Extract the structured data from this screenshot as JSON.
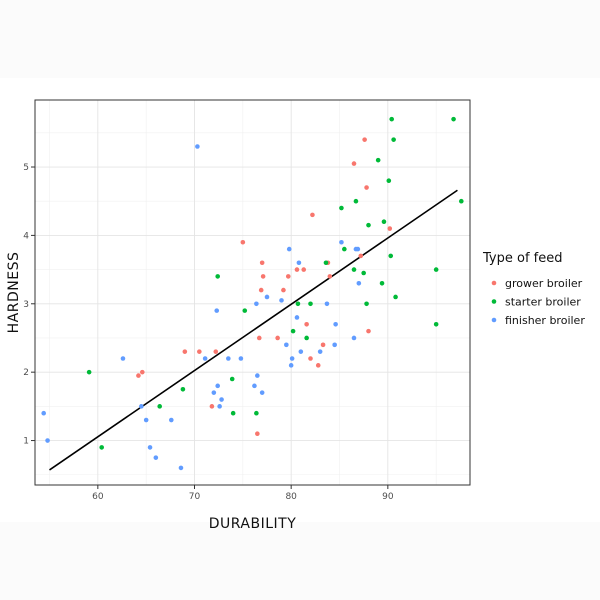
{
  "chart_data": {
    "type": "scatter",
    "title": "",
    "xlabel": "DURABILITY",
    "ylabel": "HARDNESS",
    "xlim": [
      53.5,
      98.5
    ],
    "ylim": [
      0.35,
      5.98
    ],
    "xticks": [
      60,
      70,
      80,
      90
    ],
    "yticks": [
      1,
      2,
      3,
      4,
      5
    ],
    "grid": true,
    "legend": {
      "title": "Type of feed",
      "placement": "right"
    },
    "series": [
      {
        "name": "grower broiler",
        "color": "#f8766d",
        "points": [
          [
            64.2,
            1.95
          ],
          [
            64.6,
            2.0
          ],
          [
            69.0,
            2.3
          ],
          [
            70.5,
            2.3
          ],
          [
            71.8,
            1.5
          ],
          [
            72.2,
            2.3
          ],
          [
            75.0,
            3.9
          ],
          [
            76.5,
            1.1
          ],
          [
            76.7,
            2.5
          ],
          [
            76.9,
            3.2
          ],
          [
            77.1,
            3.4
          ],
          [
            77.0,
            3.6
          ],
          [
            78.6,
            2.5
          ],
          [
            79.2,
            3.2
          ],
          [
            79.7,
            3.4
          ],
          [
            80.6,
            3.5
          ],
          [
            81.3,
            3.5
          ],
          [
            81.6,
            2.7
          ],
          [
            82.0,
            2.2
          ],
          [
            82.2,
            4.3
          ],
          [
            82.8,
            2.1
          ],
          [
            83.3,
            2.4
          ],
          [
            83.8,
            3.6
          ],
          [
            84.0,
            3.4
          ],
          [
            86.5,
            5.05
          ],
          [
            87.2,
            3.7
          ],
          [
            87.6,
            5.4
          ],
          [
            87.8,
            4.7
          ],
          [
            88.0,
            2.6
          ],
          [
            90.2,
            4.1
          ]
        ]
      },
      {
        "name": "starter broiler",
        "color": "#00ba38",
        "points": [
          [
            59.1,
            2.0
          ],
          [
            60.4,
            0.9
          ],
          [
            66.4,
            1.5
          ],
          [
            68.8,
            1.75
          ],
          [
            72.4,
            3.4
          ],
          [
            73.9,
            1.9
          ],
          [
            74.0,
            1.4
          ],
          [
            75.2,
            2.9
          ],
          [
            76.4,
            1.4
          ],
          [
            80.2,
            2.6
          ],
          [
            80.7,
            3.0
          ],
          [
            81.6,
            2.5
          ],
          [
            82.0,
            3.0
          ],
          [
            83.6,
            3.6
          ],
          [
            85.2,
            4.4
          ],
          [
            85.5,
            3.8
          ],
          [
            86.5,
            3.5
          ],
          [
            86.7,
            4.5
          ],
          [
            87.5,
            3.45
          ],
          [
            87.8,
            3.0
          ],
          [
            88.0,
            4.15
          ],
          [
            89.0,
            5.1
          ],
          [
            89.4,
            3.3
          ],
          [
            89.6,
            4.2
          ],
          [
            90.1,
            4.8
          ],
          [
            90.4,
            5.7
          ],
          [
            90.3,
            3.7
          ],
          [
            90.6,
            5.4
          ],
          [
            90.8,
            3.1
          ],
          [
            95.0,
            3.5
          ],
          [
            95.0,
            2.7
          ],
          [
            96.8,
            5.7
          ],
          [
            97.6,
            4.5
          ]
        ]
      },
      {
        "name": "finisher broiler",
        "color": "#619cff",
        "points": [
          [
            54.4,
            1.4
          ],
          [
            54.8,
            1.0
          ],
          [
            62.6,
            2.2
          ],
          [
            64.5,
            1.5
          ],
          [
            65.0,
            1.3
          ],
          [
            65.4,
            0.9
          ],
          [
            66.0,
            0.75
          ],
          [
            67.6,
            1.3
          ],
          [
            68.6,
            0.6
          ],
          [
            70.3,
            5.3
          ],
          [
            71.1,
            2.2
          ],
          [
            72.0,
            1.7
          ],
          [
            72.3,
            2.9
          ],
          [
            72.4,
            1.8
          ],
          [
            72.6,
            1.5
          ],
          [
            72.8,
            1.6
          ],
          [
            73.5,
            2.2
          ],
          [
            74.8,
            2.2
          ],
          [
            76.2,
            1.8
          ],
          [
            76.4,
            3.0
          ],
          [
            76.5,
            1.95
          ],
          [
            77.0,
            1.7
          ],
          [
            77.5,
            3.1
          ],
          [
            79.0,
            3.05
          ],
          [
            79.5,
            2.4
          ],
          [
            79.8,
            3.8
          ],
          [
            80.0,
            2.1
          ],
          [
            80.1,
            2.2
          ],
          [
            80.6,
            2.8
          ],
          [
            80.8,
            3.6
          ],
          [
            81.0,
            2.3
          ],
          [
            83.0,
            2.3
          ],
          [
            83.7,
            3.0
          ],
          [
            84.5,
            2.4
          ],
          [
            84.6,
            2.7
          ],
          [
            85.2,
            3.9
          ],
          [
            86.5,
            2.5
          ],
          [
            86.7,
            3.8
          ],
          [
            86.9,
            3.8
          ],
          [
            87.0,
            3.3
          ]
        ]
      }
    ],
    "trendline": {
      "color": "#000000",
      "points": [
        [
          55.0,
          0.57
        ],
        [
          97.2,
          4.66
        ]
      ]
    }
  }
}
